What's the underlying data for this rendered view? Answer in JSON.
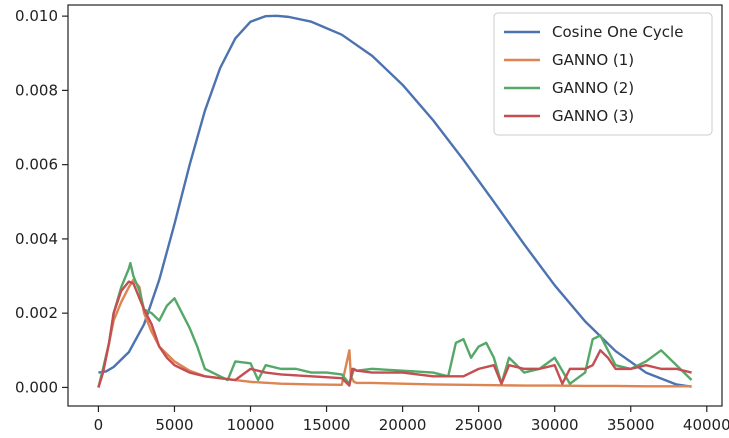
{
  "chart_data": {
    "type": "line",
    "title": "",
    "xlabel": "",
    "ylabel": "",
    "xlim": [
      -2000,
      41000
    ],
    "ylim": [
      -0.0005,
      0.0103
    ],
    "xticks": [
      0,
      5000,
      10000,
      15000,
      20000,
      25000,
      30000,
      35000,
      40000
    ],
    "yticks": [
      0.0,
      0.002,
      0.004,
      0.006,
      0.008,
      0.01
    ],
    "xtick_labels": [
      "0",
      "5000",
      "10000",
      "15000",
      "20000",
      "25000",
      "30000",
      "35000",
      "40000"
    ],
    "ytick_labels": [
      "0.000",
      "0.002",
      "0.004",
      "0.006",
      "0.008",
      "0.010"
    ],
    "grid": false,
    "legend_position": "top-right",
    "series": [
      {
        "name": "Cosine One Cycle",
        "color": "#4c72b0",
        "x": [
          0,
          500,
          1000,
          2000,
          3000,
          4000,
          5000,
          6000,
          7000,
          8000,
          9000,
          10000,
          11000,
          11700,
          12500,
          14000,
          16000,
          18000,
          20000,
          22000,
          24000,
          26000,
          28000,
          30000,
          32000,
          34000,
          36000,
          38000,
          39000
        ],
        "values": [
          0.0004,
          0.00043,
          0.00055,
          0.00095,
          0.0017,
          0.0029,
          0.0044,
          0.006,
          0.00745,
          0.0086,
          0.0094,
          0.00985,
          0.01,
          0.01001,
          0.00998,
          0.00985,
          0.0095,
          0.00893,
          0.00815,
          0.0072,
          0.00613,
          0.005,
          0.00385,
          0.00275,
          0.00178,
          0.00098,
          0.0004,
          8e-05,
          2e-05
        ]
      },
      {
        "name": "GANNO (1)",
        "color": "#dd8452",
        "x": [
          0,
          300,
          700,
          1000,
          1500,
          2000,
          2300,
          2700,
          3000,
          3500,
          4000,
          4500,
          5000,
          6000,
          7000,
          8000,
          9000,
          10000,
          12000,
          14000,
          16000,
          16500,
          16600,
          16800,
          17000,
          18000,
          20000,
          22000,
          24000,
          26000,
          28000,
          30000,
          32000,
          34000,
          36000,
          38000,
          39000
        ],
        "values": [
          0.0,
          0.0004,
          0.0012,
          0.0018,
          0.0023,
          0.0027,
          0.0029,
          0.0027,
          0.002,
          0.0015,
          0.0011,
          0.0009,
          0.0007,
          0.00045,
          0.0003,
          0.00025,
          0.0002,
          0.00015,
          0.0001,
          8e-05,
          7e-05,
          0.001,
          0.0003,
          0.00015,
          0.00012,
          0.00012,
          0.0001,
          8e-05,
          7e-05,
          6e-05,
          5e-05,
          5e-05,
          4e-05,
          4e-05,
          3e-05,
          3e-05,
          3e-05
        ]
      },
      {
        "name": "GANNO (2)",
        "color": "#55a868",
        "x": [
          0,
          300,
          700,
          1000,
          1500,
          2000,
          2100,
          2300,
          2700,
          3000,
          3500,
          4000,
          4500,
          5000,
          5500,
          6000,
          6500,
          7000,
          8000,
          8500,
          9000,
          10000,
          10500,
          11000,
          12000,
          13000,
          14000,
          15000,
          16000,
          16500,
          16800,
          17000,
          18000,
          20000,
          22000,
          23000,
          23500,
          24000,
          24500,
          25000,
          25500,
          26000,
          26500,
          27000,
          28000,
          29000,
          30000,
          31000,
          32000,
          32500,
          33000,
          33500,
          34000,
          35000,
          36000,
          37000,
          38000,
          39000
        ],
        "values": [
          0.0,
          0.0005,
          0.0012,
          0.002,
          0.0027,
          0.0032,
          0.00335,
          0.003,
          0.0026,
          0.0021,
          0.002,
          0.0018,
          0.0022,
          0.0024,
          0.002,
          0.0016,
          0.0011,
          0.0005,
          0.0003,
          0.0002,
          0.0007,
          0.00065,
          0.0002,
          0.0006,
          0.0005,
          0.0005,
          0.0004,
          0.0004,
          0.00035,
          0.0001,
          0.0005,
          0.00045,
          0.0005,
          0.00045,
          0.0004,
          0.0003,
          0.0012,
          0.0013,
          0.0008,
          0.0011,
          0.0012,
          0.0008,
          0.0001,
          0.0008,
          0.0004,
          0.0005,
          0.0008,
          0.0001,
          0.0004,
          0.0013,
          0.0014,
          0.001,
          0.0006,
          0.0005,
          0.0007,
          0.001,
          0.0006,
          0.0002
        ]
      },
      {
        "name": "GANNO (3)",
        "color": "#c44e52",
        "x": [
          0,
          300,
          700,
          1000,
          1500,
          2000,
          2300,
          2700,
          3000,
          3500,
          4000,
          4500,
          5000,
          5500,
          6000,
          7000,
          8000,
          9000,
          10000,
          11000,
          12000,
          14000,
          16000,
          16500,
          16700,
          17000,
          18000,
          20000,
          22000,
          24000,
          25000,
          26000,
          26500,
          27000,
          28000,
          29000,
          30000,
          30500,
          31000,
          32000,
          32500,
          33000,
          33500,
          34000,
          35000,
          36000,
          37000,
          38000,
          39000
        ],
        "values": [
          0.0,
          0.0004,
          0.0012,
          0.002,
          0.0026,
          0.00285,
          0.0028,
          0.0024,
          0.0021,
          0.0017,
          0.0011,
          0.0008,
          0.0006,
          0.0005,
          0.0004,
          0.0003,
          0.00025,
          0.0002,
          0.0005,
          0.0004,
          0.00035,
          0.0003,
          0.00025,
          5e-05,
          0.0005,
          0.00045,
          0.0004,
          0.0004,
          0.0003,
          0.0003,
          0.0005,
          0.0006,
          0.0001,
          0.0006,
          0.0005,
          0.0005,
          0.0006,
          0.0001,
          0.0005,
          0.0005,
          0.0006,
          0.001,
          0.0008,
          0.0005,
          0.0005,
          0.0006,
          0.0005,
          0.0005,
          0.0004
        ]
      }
    ]
  }
}
